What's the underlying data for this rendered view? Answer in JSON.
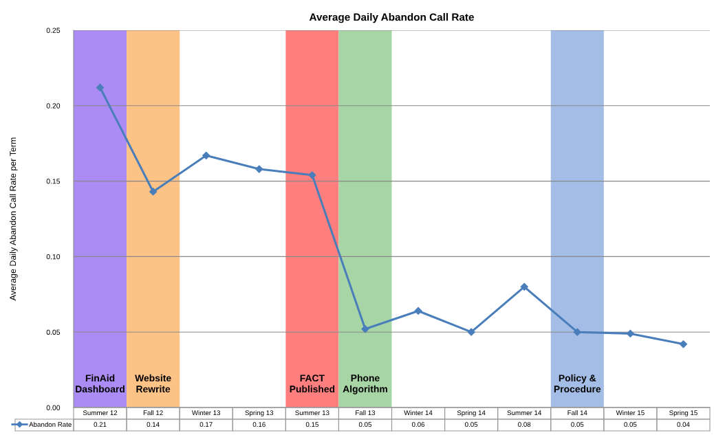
{
  "chart_data": {
    "type": "line",
    "title": "Average Daily Abandon Call Rate",
    "ylabel": "Average Daily Abandon Call Rate per Term",
    "categories": [
      "Summer 12",
      "Fall 12",
      "Winter 13",
      "Spring 13",
      "Summer 13",
      "Fall 13",
      "Winter 14",
      "Spring 14",
      "Summer 14",
      "Fall 14",
      "Winter 15",
      "Spring 15"
    ],
    "series": [
      {
        "name": "Abandon Rate",
        "color": "#4a7ebb",
        "values": [
          0.212,
          0.143,
          0.167,
          0.158,
          0.154,
          0.052,
          0.064,
          0.05,
          0.08,
          0.05,
          0.049,
          0.042
        ],
        "value_labels": [
          "0.21",
          "0.14",
          "0.17",
          "0.16",
          "0.15",
          "0.05",
          "0.06",
          "0.05",
          "0.08",
          "0.05",
          "0.05",
          "0.04"
        ]
      }
    ],
    "ylim": [
      0,
      0.25
    ],
    "yticks": [
      {
        "value": 0,
        "label": "0.00"
      },
      {
        "value": 0.05,
        "label": "0.05"
      },
      {
        "value": 0.1,
        "label": "0.10"
      },
      {
        "value": 0.15,
        "label": "0.15"
      },
      {
        "value": 0.2,
        "label": "0.20"
      },
      {
        "value": 0.25,
        "label": "0.25"
      }
    ],
    "bands": [
      {
        "axis": "x",
        "from": "Summer 12",
        "to": "Summer 12",
        "label": "FinAid\nDashboard",
        "color": "#ab8cf5"
      },
      {
        "axis": "x",
        "from": "Fall 12",
        "to": "Fall 12",
        "label": "Website\nRewrite",
        "color": "#fdc285"
      },
      {
        "axis": "x",
        "from": "Summer 13",
        "to": "Summer 13",
        "label": "FACT\nPublished",
        "color": "#ff7f7f"
      },
      {
        "axis": "x",
        "from": "Fall 13",
        "to": "Fall 13",
        "label": "Phone\nAlgorithm",
        "color": "#a8d5a6"
      },
      {
        "axis": "x",
        "from": "Fall 14",
        "to": "Fall 14",
        "label": "Policy &\nProcedure",
        "color": "#a4bde6"
      }
    ],
    "grid": "y",
    "legend": "bottom",
    "marker": "diamond",
    "line_style": "solid"
  }
}
